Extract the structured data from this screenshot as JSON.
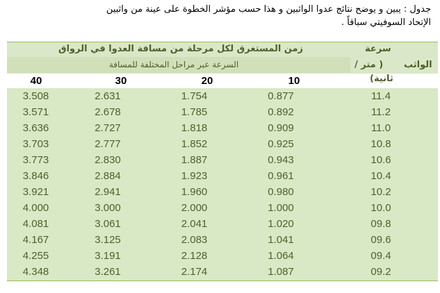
{
  "caption": {
    "line1": "جدول : يبين و يوضح نتائج عدوا الواثبين و هذا حسب مؤشر الخطوة على عينة من واثبين",
    "line2": "الإتحاد السوفيتي سباقاً ."
  },
  "header": {
    "time_title": "زمن المستغرق لكل مرحلة من مسافة العدوا في الرواق",
    "speed_subtitle": "السرعة عبر مراحل المختلفة للمسافة",
    "speed_col_line1": "سرعة",
    "speed_col_label": "الواثب",
    "speed_col_unit": "( متر /",
    "speed_col_unit2": "ثانية)",
    "distances": [
      "40",
      "30",
      "20",
      "10"
    ]
  },
  "rows": [
    {
      "d40": "3.508",
      "d30": "2.631",
      "d20": "1.754",
      "d10": "0.877",
      "speed": "11.4"
    },
    {
      "d40": "3.571",
      "d30": "2.678",
      "d20": "1.785",
      "d10": "0.892",
      "speed": "11.2"
    },
    {
      "d40": "3.636",
      "d30": "2.727",
      "d20": "1.818",
      "d10": "0.909",
      "speed": "11.0"
    },
    {
      "d40": "3.703",
      "d30": "2.777",
      "d20": "1.852",
      "d10": "0.925",
      "speed": "10.8"
    },
    {
      "d40": "3.773",
      "d30": "2.830",
      "d20": "1.887",
      "d10": "0.943",
      "speed": "10.6"
    },
    {
      "d40": "3.846",
      "d30": "2.884",
      "d20": "1.923",
      "d10": "0.961",
      "speed": "10.4"
    },
    {
      "d40": "3.921",
      "d30": "2.941",
      "d20": "1.960",
      "d10": "0.980",
      "speed": "10.2"
    },
    {
      "d40": "4.000",
      "d30": "3.000",
      "d20": "2.000",
      "d10": "1.000",
      "speed": "10.0"
    },
    {
      "d40": "4.081",
      "d30": "3.061",
      "d20": "2.041",
      "d10": "1.020",
      "speed": "09.8"
    },
    {
      "d40": "4.167",
      "d30": "3.125",
      "d20": "2.083",
      "d10": "1.041",
      "speed": "09.6"
    },
    {
      "d40": "4.255",
      "d30": "3.191",
      "d20": "2.128",
      "d10": "1.064",
      "speed": "09.4"
    },
    {
      "d40": "4.348",
      "d30": "3.261",
      "d20": "2.174",
      "d10": "1.087",
      "speed": "09.2"
    }
  ]
}
